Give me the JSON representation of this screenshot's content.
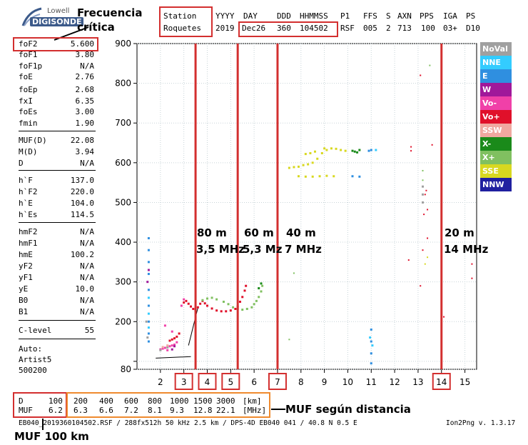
{
  "logo": {
    "brand_top": "Lowell",
    "brand_main": "DIGISONDE"
  },
  "annotations": {
    "critical_frequency": "Frecuencia crítica",
    "muf_by_distance": "MUF según distancia",
    "muf_100km": "MUF 100 km",
    "band_80": "80 m",
    "band_80_freq": "3,5 MHz",
    "band_60": "60 m",
    "band_60_freq": "5,3 Mz",
    "band_40": "40 m",
    "band_40_freq": "7 MHz",
    "band_20": "20 m",
    "band_20_freq": "14 MHz"
  },
  "header": {
    "station_label": "Station",
    "station_value": "Roquetes",
    "yyyy_label": "YYYY",
    "yyyy_value": "2019",
    "day_label": "DAY",
    "day_value": "Dec26",
    "ddd_label": "DDD",
    "ddd_value": "360",
    "hms_label": "HHMMSS",
    "hms_value": "104502",
    "p1_label": "P1",
    "p1_value": "RSF",
    "ffs_label": "FFS",
    "ffs_value": "005",
    "s_label": "S",
    "s_value": "2",
    "axn_label": "AXN",
    "axn_value": "713",
    "pps_label": "PPS",
    "pps_value": "100",
    "iga_label": "IGA",
    "iga_value": "03+",
    "ps_label": "PS",
    "ps_value": "D10"
  },
  "params": [
    {
      "label": "foF2",
      "value": "5.600"
    },
    {
      "label": "foF1",
      "value": "3.80"
    },
    {
      "label": "foF1p",
      "value": "N/A"
    },
    {
      "label": "foE",
      "value": "2.76"
    },
    {
      "label": "foEp",
      "value": "2.68"
    },
    {
      "label": "fxI",
      "value": "6.35"
    },
    {
      "label": "foEs",
      "value": "3.00"
    },
    {
      "label": "fmin",
      "value": "1.90"
    },
    {
      "label": "MUF(D)",
      "value": "22.08"
    },
    {
      "label": "M(D)",
      "value": "3.94"
    },
    {
      "label": "D",
      "value": "N/A"
    },
    {
      "label": "h`F",
      "value": "137.0"
    },
    {
      "label": "h`F2",
      "value": "220.0"
    },
    {
      "label": "h`E",
      "value": "104.0"
    },
    {
      "label": "h`Es",
      "value": "114.5"
    },
    {
      "label": "hmF2",
      "value": "N/A"
    },
    {
      "label": "hmF1",
      "value": "N/A"
    },
    {
      "label": "hmE",
      "value": "100.2"
    },
    {
      "label": "yF2",
      "value": "N/A"
    },
    {
      "label": "yF1",
      "value": "N/A"
    },
    {
      "label": "yE",
      "value": "10.0"
    },
    {
      "label": "B0",
      "value": "N/A"
    },
    {
      "label": "B1",
      "value": "N/A"
    },
    {
      "label": "C-level",
      "value": "55"
    }
  ],
  "autoscaling": {
    "line1": "Auto:",
    "line2": "Artist5",
    "line3": "500200"
  },
  "legend": [
    {
      "label": "NoVal",
      "color": "#a0a0a0"
    },
    {
      "label": "NNE",
      "color": "#33ccff"
    },
    {
      "label": "E",
      "color": "#2f8fe0"
    },
    {
      "label": "W",
      "color": "#a0189a"
    },
    {
      "label": "Vo-",
      "color": "#f040a8"
    },
    {
      "label": "Vo+",
      "color": "#e0102a"
    },
    {
      "label": "SSW",
      "color": "#f0a8a0"
    },
    {
      "label": "X-",
      "color": "#1a8a1a"
    },
    {
      "label": "X+",
      "color": "#80c060"
    },
    {
      "label": "SSE",
      "color": "#d8d820"
    },
    {
      "label": "NNW",
      "color": "#2020a0"
    }
  ],
  "muf_table": {
    "d_label": "D",
    "muf_label": "MUF",
    "d_first": "100",
    "muf_first": "6.2",
    "d_values": [
      "200",
      "400",
      "600",
      "800",
      "1000",
      "1500",
      "3000"
    ],
    "muf_values": [
      "6.3",
      "6.6",
      "7.2",
      "8.1",
      "9.3",
      "12.8",
      "22.1"
    ],
    "d_unit": "[km]",
    "muf_unit": "[MHz]"
  },
  "footer": {
    "file_info": "EB040_2019360104502.RSF / 288fx512h 50 kHz 2.5 km / DPS-4D EB040 041 / 40.8 N 0.5 E",
    "version": "Ion2Png v. 1.3.17"
  },
  "chart_data": {
    "type": "scatter",
    "title": "",
    "xlabel": "",
    "ylabel": "",
    "xlim": [
      1.0,
      15.5
    ],
    "ylim": [
      80,
      900
    ],
    "x_ticks": [
      2,
      3,
      4,
      5,
      6,
      7,
      8,
      9,
      10,
      11,
      12,
      13,
      14,
      15
    ],
    "y_ticks": [
      80,
      100,
      200,
      300,
      400,
      500,
      600,
      700,
      800,
      900
    ],
    "y_tick_labels": [
      "80",
      "",
      "200",
      "300",
      "400",
      "500",
      "600",
      "700",
      "800",
      "900"
    ],
    "grid": true,
    "legend_position": "right",
    "highlighted_frequencies": [
      3.5,
      5.3,
      7.0,
      14.0
    ],
    "boxed_ticks": [
      3,
      4,
      5,
      7,
      14
    ],
    "series": [
      {
        "name": "Vo+",
        "color": "#e0102a",
        "points": [
          [
            3.0,
            248
          ],
          [
            3.1,
            252
          ],
          [
            3.2,
            245
          ],
          [
            3.3,
            238
          ],
          [
            3.4,
            232
          ],
          [
            3.5,
            228
          ],
          [
            3.6,
            236
          ],
          [
            3.7,
            245
          ],
          [
            3.8,
            252
          ],
          [
            3.9,
            246
          ],
          [
            4.0,
            240
          ],
          [
            4.2,
            233
          ],
          [
            4.4,
            228
          ],
          [
            4.6,
            226
          ],
          [
            4.8,
            226
          ],
          [
            5.0,
            228
          ],
          [
            5.2,
            232
          ],
          [
            5.3,
            238
          ],
          [
            5.4,
            250
          ],
          [
            5.5,
            262
          ],
          [
            5.6,
            278
          ],
          [
            5.65,
            290
          ],
          [
            2.4,
            152
          ],
          [
            2.5,
            155
          ],
          [
            2.6,
            158
          ],
          [
            2.7,
            162
          ],
          [
            2.8,
            170
          ]
        ]
      },
      {
        "name": "Vo-",
        "color": "#f040a8",
        "points": [
          [
            2.0,
            130
          ],
          [
            2.1,
            132
          ],
          [
            2.2,
            134
          ],
          [
            2.3,
            128
          ],
          [
            2.4,
            138
          ],
          [
            2.5,
            140
          ],
          [
            2.6,
            142
          ],
          [
            2.9,
            240
          ],
          [
            3.0,
            256
          ],
          [
            2.2,
            190
          ],
          [
            2.5,
            175
          ],
          [
            2.7,
            148
          ]
        ]
      },
      {
        "name": "X+",
        "color": "#80c060",
        "points": [
          [
            4.7,
            250
          ],
          [
            4.9,
            244
          ],
          [
            5.1,
            236
          ],
          [
            5.3,
            232
          ],
          [
            5.5,
            230
          ],
          [
            5.7,
            232
          ],
          [
            5.9,
            236
          ],
          [
            6.0,
            244
          ],
          [
            6.1,
            252
          ],
          [
            6.2,
            262
          ],
          [
            6.3,
            276
          ],
          [
            6.35,
            290
          ],
          [
            3.8,
            254
          ],
          [
            4.0,
            258
          ],
          [
            4.2,
            260
          ],
          [
            4.4,
            256
          ]
        ]
      },
      {
        "name": "SSE",
        "color": "#d8d820",
        "points": [
          [
            7.5,
            587
          ],
          [
            7.7,
            589
          ],
          [
            7.9,
            590
          ],
          [
            8.1,
            594
          ],
          [
            8.3,
            596
          ],
          [
            8.5,
            600
          ],
          [
            8.7,
            610
          ],
          [
            8.9,
            624
          ],
          [
            9.1,
            632
          ],
          [
            9.3,
            636
          ],
          [
            9.5,
            635
          ],
          [
            9.7,
            632
          ],
          [
            9.9,
            630
          ],
          [
            8.2,
            622
          ],
          [
            8.4,
            624
          ],
          [
            8.6,
            628
          ],
          [
            9.0,
            636
          ],
          [
            7.9,
            566
          ],
          [
            8.2,
            565
          ],
          [
            8.5,
            565
          ],
          [
            8.8,
            566
          ],
          [
            9.1,
            567
          ],
          [
            9.4,
            566
          ]
        ]
      },
      {
        "name": "X-",
        "color": "#1a8a1a",
        "points": [
          [
            10.2,
            630
          ],
          [
            10.3,
            628
          ],
          [
            10.4,
            626
          ],
          [
            10.5,
            632
          ],
          [
            6.3,
            296
          ],
          [
            6.2,
            284
          ]
        ]
      },
      {
        "name": "E",
        "color": "#2f8fe0",
        "points": [
          [
            1.5,
            410
          ],
          [
            1.5,
            380
          ],
          [
            1.5,
            350
          ],
          [
            1.5,
            320
          ],
          [
            1.5,
            280
          ],
          [
            1.5,
            240
          ],
          [
            1.5,
            200
          ],
          [
            1.5,
            170
          ],
          [
            1.5,
            150
          ],
          [
            11.0,
            180
          ],
          [
            11.0,
            150
          ],
          [
            11.0,
            120
          ],
          [
            11.0,
            95
          ],
          [
            10.9,
            630
          ],
          [
            11.0,
            632
          ],
          [
            10.2,
            566
          ],
          [
            10.5,
            565
          ]
        ]
      },
      {
        "name": "NNE",
        "color": "#33ccff",
        "points": [
          [
            1.5,
            260
          ],
          [
            1.5,
            220
          ],
          [
            1.5,
            185
          ],
          [
            10.95,
            160
          ],
          [
            11.05,
            140
          ],
          [
            11.2,
            632
          ]
        ]
      },
      {
        "name": "W",
        "color": "#a0189a",
        "points": [
          [
            1.45,
            300
          ],
          [
            1.5,
            330
          ],
          [
            2.5,
            130
          ],
          [
            2.6,
            138
          ]
        ]
      },
      {
        "name": "NoVal",
        "color": "#a0a0a0",
        "points": [
          [
            1.4,
            200
          ],
          [
            1.45,
            160
          ],
          [
            2.0,
            128
          ],
          [
            2.3,
            135
          ],
          [
            13.2,
            540
          ],
          [
            13.2,
            520
          ],
          [
            13.2,
            500
          ]
        ]
      },
      {
        "name": "SSW",
        "color": "#f0a8a0",
        "points": [
          [
            2.1,
            136
          ],
          [
            2.3,
            140
          ]
        ]
      }
    ],
    "scattered_points": [
      {
        "color": "#e0102a",
        "points": [
          [
            13.1,
            820
          ],
          [
            13.6,
            645
          ],
          [
            12.7,
            640
          ],
          [
            12.7,
            630
          ],
          [
            13.4,
            410
          ],
          [
            13.25,
            470
          ],
          [
            13.3,
            520
          ],
          [
            13.35,
            530
          ],
          [
            13.4,
            482
          ],
          [
            12.6,
            355
          ],
          [
            14.1,
            212
          ],
          [
            15.3,
            309
          ],
          [
            15.3,
            345
          ],
          [
            13.1,
            290
          ],
          [
            13.2,
            380
          ]
        ]
      },
      {
        "color": "#80c060",
        "points": [
          [
            13.5,
            845
          ],
          [
            13.2,
            580
          ],
          [
            13.2,
            556
          ],
          [
            7.7,
            322
          ],
          [
            7.5,
            155
          ]
        ]
      },
      {
        "color": "#d8d820",
        "points": [
          [
            13.3,
            345
          ],
          [
            13.4,
            362
          ]
        ]
      }
    ]
  }
}
